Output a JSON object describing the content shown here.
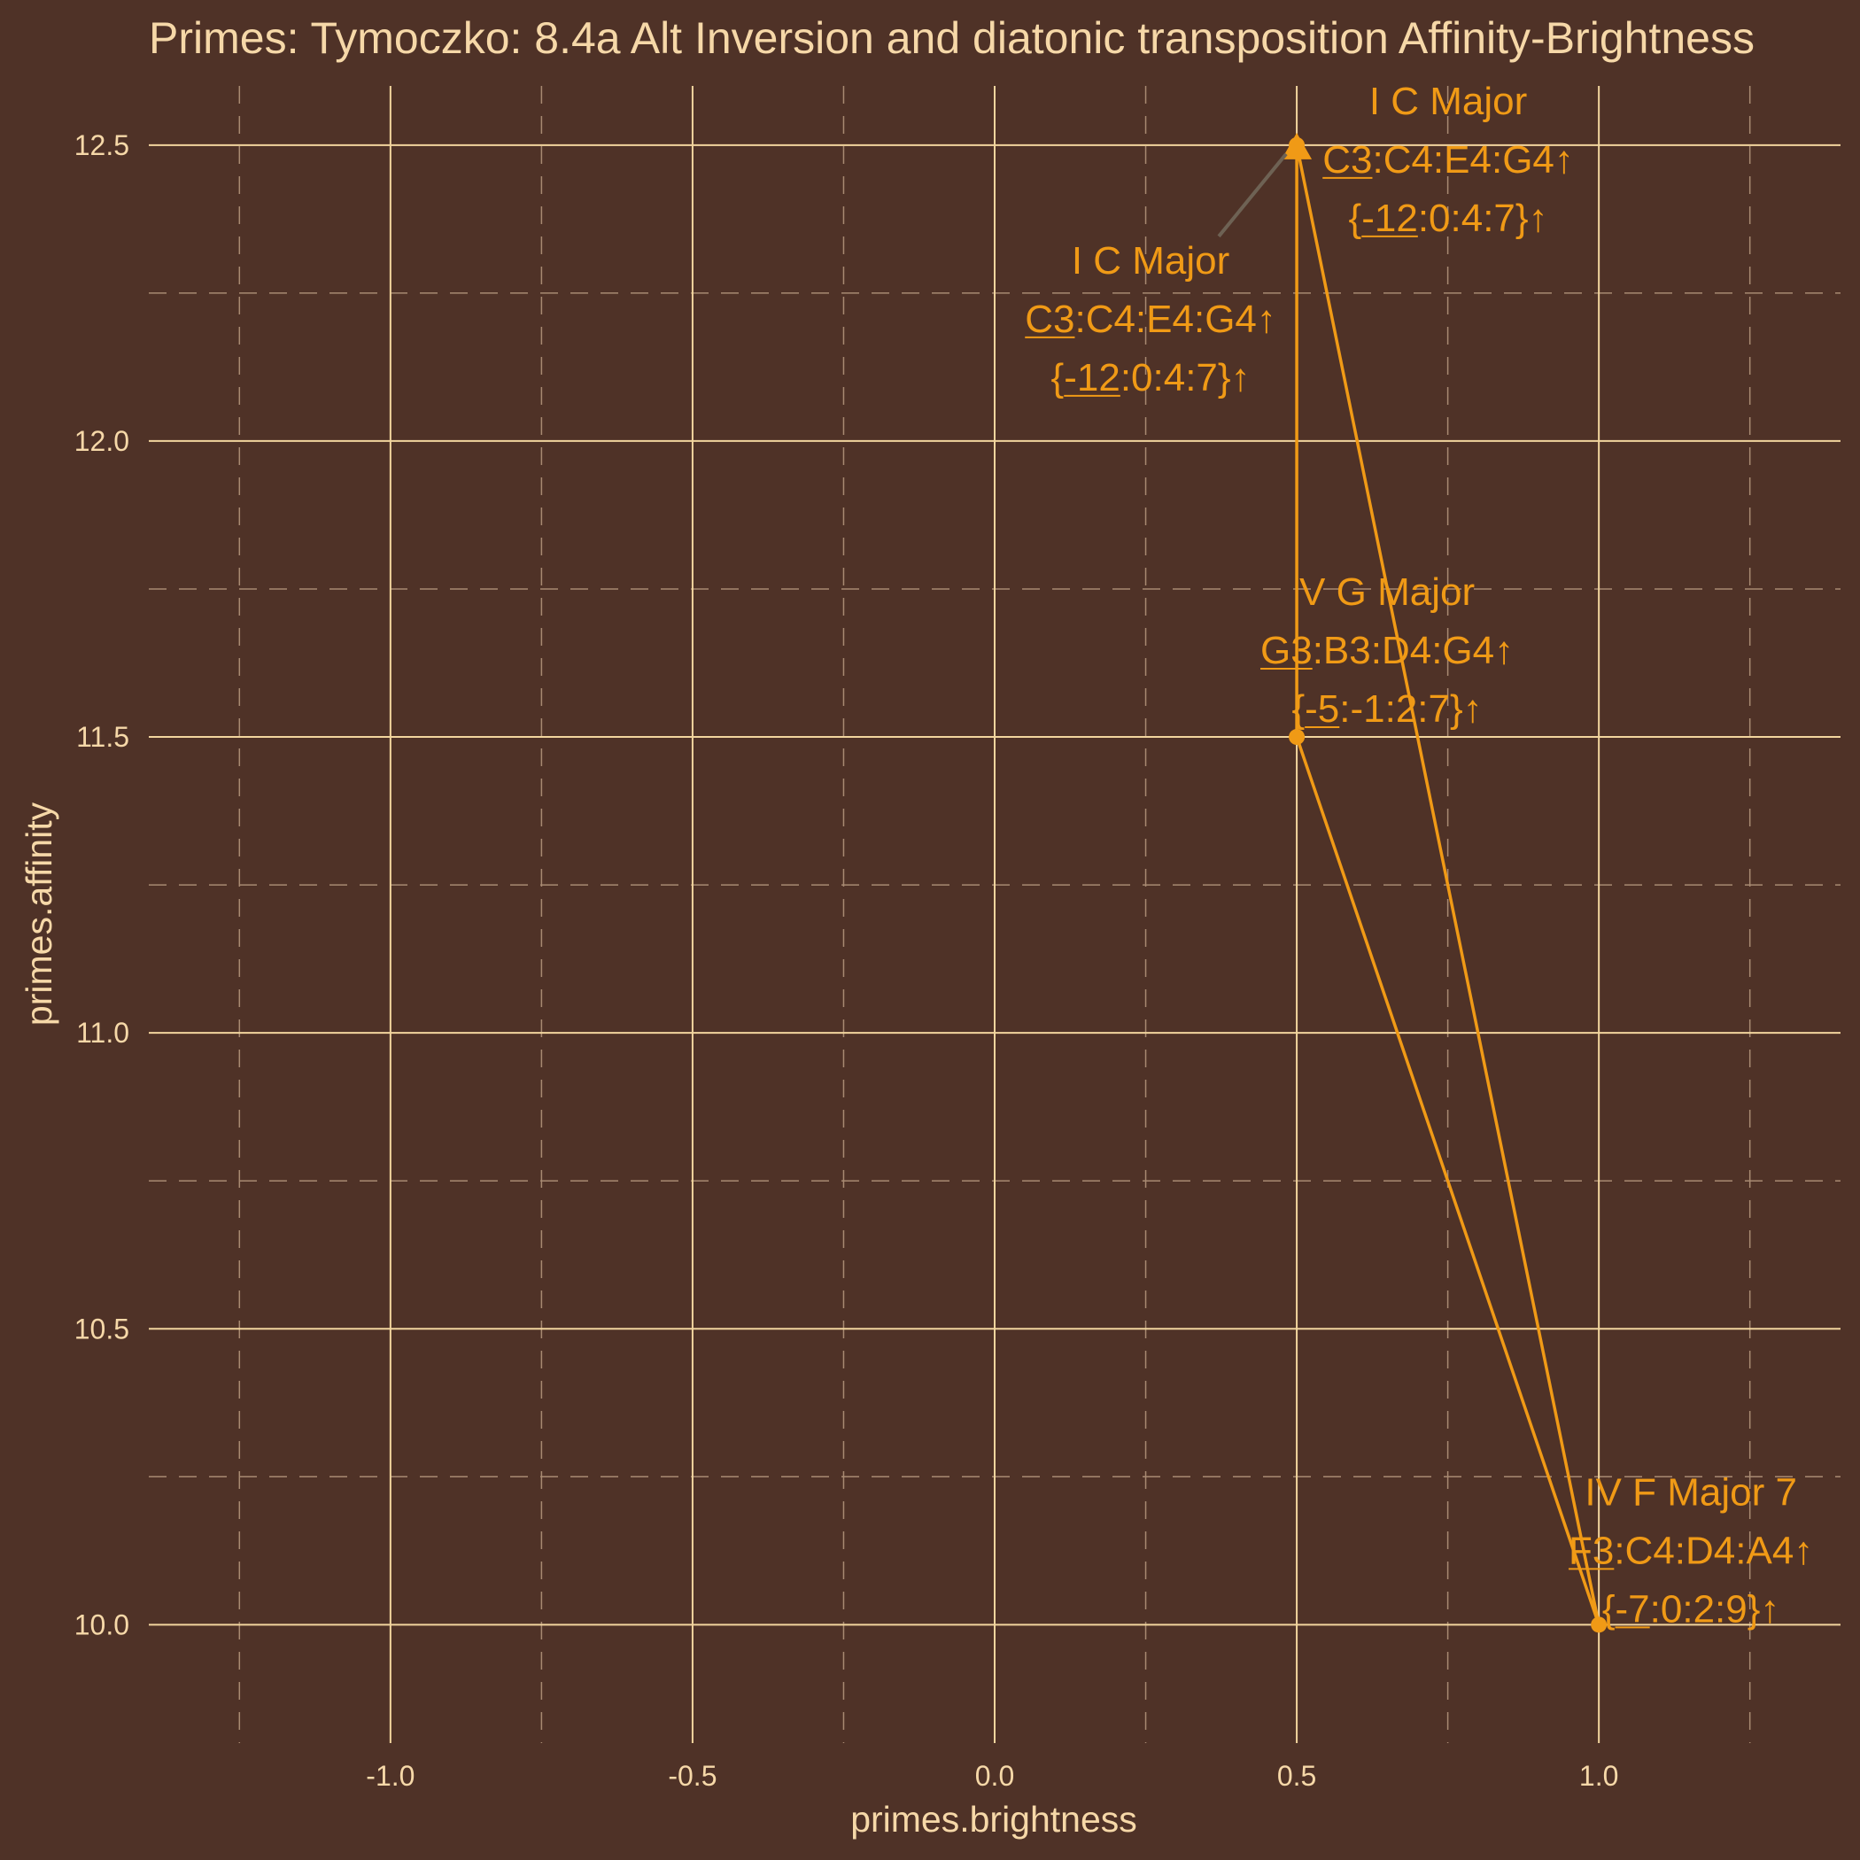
{
  "chart_data": {
    "type": "line",
    "title": "Primes: Tymoczko: 8.4a Alt Inversion and diatonic transposition Affinity-Brightness",
    "xlabel": "primes.brightness",
    "ylabel": "primes.affinity",
    "xlim": [
      -1.4,
      1.4
    ],
    "ylim": [
      9.8,
      12.6
    ],
    "xticks": [
      -1.0,
      -0.5,
      0.0,
      0.5,
      1.0
    ],
    "xtick_labels": [
      "-1.0",
      "-0.5",
      "0.0",
      "0.5",
      "1.0"
    ],
    "yticks": [
      10.0,
      10.5,
      11.0,
      11.5,
      12.0,
      12.5
    ],
    "ytick_labels": [
      "10.0",
      "10.5",
      "11.0",
      "11.5",
      "12.0",
      "12.5"
    ],
    "grid": true,
    "legend": "none",
    "series": [
      {
        "color": "#f09a16",
        "points": [
          {
            "x": 0.5,
            "y": 12.5,
            "labels": [
              "I C Major",
              "C3:C4:E4:G4↑",
              "{-12:0:4:7}↑"
            ],
            "underline": [
              "C3",
              "-12"
            ]
          },
          {
            "x": 1.0,
            "y": 10.0,
            "labels": [
              "IV F Major 7",
              "F3:C4:D4:A4↑",
              "{-7:0:2:9}↑"
            ],
            "underline": [
              "F3",
              "-7"
            ]
          },
          {
            "x": 0.5,
            "y": 11.5,
            "labels": [
              "V G Major",
              "G3:B3:D4:G4↑",
              "{-5:-1:2:7}↑"
            ],
            "underline": [
              "G3",
              "-5"
            ]
          },
          {
            "x": 0.5,
            "y": 12.5,
            "labels": [
              "I C Major",
              "C3:C4:E4:G4↑",
              "{-12:0:4:7}↑"
            ],
            "underline": [
              "C3",
              "-12"
            ]
          }
        ]
      }
    ]
  },
  "colors": {
    "background": "#4f3227",
    "text": "#f6d8a8",
    "series": "#f09a16",
    "grid": "#f2d59e"
  }
}
